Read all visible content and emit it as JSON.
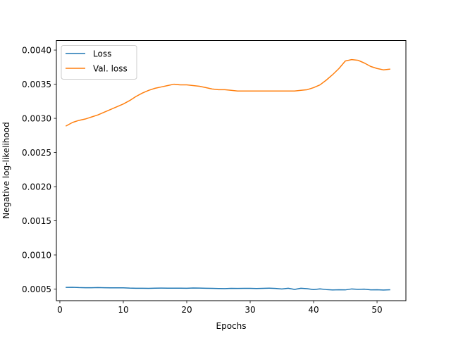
{
  "chart_data": {
    "type": "line",
    "title": "",
    "xlabel": "Epochs",
    "ylabel": "Negative log-likelihood",
    "xlim": [
      -0.55,
      54.55
    ],
    "ylim": [
      0.00033,
      0.00414
    ],
    "xticks": [
      0,
      10,
      20,
      30,
      40,
      50
    ],
    "yticks": [
      0.0005,
      0.001,
      0.0015,
      0.002,
      0.0025,
      0.003,
      0.0035,
      0.004
    ],
    "ytick_labels": [
      "0.0005",
      "0.0010",
      "0.0015",
      "0.0020",
      "0.0025",
      "0.0030",
      "0.0035",
      "0.0040"
    ],
    "grid": false,
    "legend_position": "top-left",
    "x": [
      1,
      2,
      3,
      4,
      5,
      6,
      7,
      8,
      9,
      10,
      11,
      12,
      13,
      14,
      15,
      16,
      17,
      18,
      19,
      20,
      21,
      22,
      23,
      24,
      25,
      26,
      27,
      28,
      29,
      30,
      31,
      32,
      33,
      34,
      35,
      36,
      37,
      38,
      39,
      40,
      41,
      42,
      43,
      44,
      45,
      46,
      47,
      48,
      49,
      50,
      51,
      52
    ],
    "series": [
      {
        "name": "Loss",
        "color": "#1f77b4",
        "values": [
          0.000525,
          0.000526,
          0.000522,
          0.00052,
          0.00052,
          0.000522,
          0.00052,
          0.000518,
          0.000518,
          0.000518,
          0.000514,
          0.000512,
          0.000512,
          0.000511,
          0.000513,
          0.000514,
          0.000513,
          0.000513,
          0.000513,
          0.000512,
          0.000515,
          0.000514,
          0.000512,
          0.00051,
          0.000508,
          0.000506,
          0.00051,
          0.000509,
          0.000511,
          0.00051,
          0.000508,
          0.00051,
          0.000513,
          0.000509,
          0.000501,
          0.000512,
          0.000495,
          0.000512,
          0.000505,
          0.000492,
          0.000503,
          0.000493,
          0.000487,
          0.00049,
          0.000488,
          0.000502,
          0.000496,
          0.000499,
          0.000488,
          0.00049,
          0.000486,
          0.00049
        ]
      },
      {
        "name": "Val. loss",
        "color": "#ff7f0e",
        "values": [
          0.00289,
          0.00294,
          0.00297,
          0.00299,
          0.00302,
          0.00305,
          0.00309,
          0.00313,
          0.00317,
          0.00321,
          0.00326,
          0.00332,
          0.00337,
          0.00341,
          0.00344,
          0.00346,
          0.00348,
          0.0035,
          0.00349,
          0.00349,
          0.00348,
          0.00347,
          0.00345,
          0.00343,
          0.00342,
          0.00342,
          0.00341,
          0.0034,
          0.0034,
          0.0034,
          0.0034,
          0.0034,
          0.0034,
          0.0034,
          0.0034,
          0.0034,
          0.0034,
          0.00341,
          0.00342,
          0.00345,
          0.00349,
          0.00356,
          0.00364,
          0.00373,
          0.00384,
          0.00386,
          0.00385,
          0.00381,
          0.00376,
          0.00373,
          0.00371,
          0.00372
        ]
      }
    ]
  }
}
